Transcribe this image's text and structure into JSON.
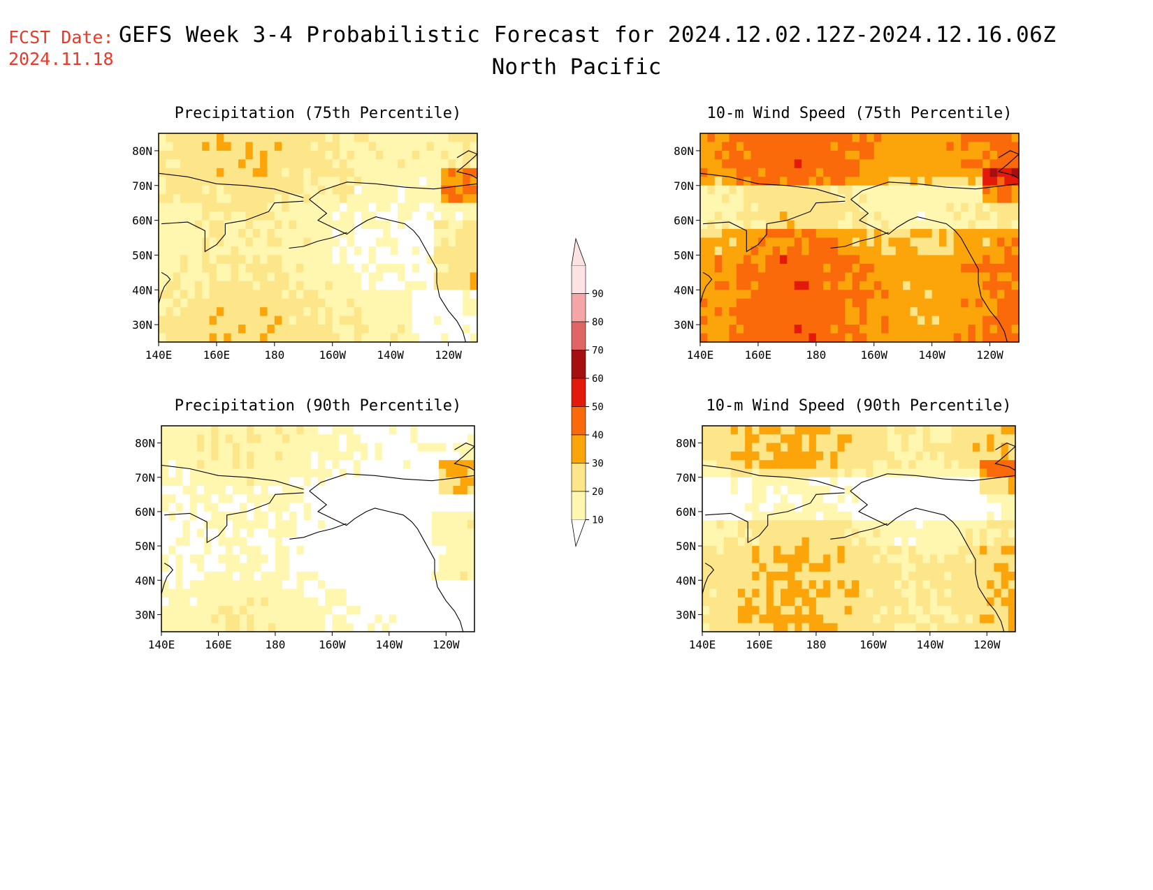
{
  "header": {
    "fcst_label": "FCST Date:",
    "fcst_date": "2024.11.18",
    "title": "GEFS Week 3-4 Probabilistic Forecast for 2024.12.02.12Z-2024.12.16.06Z",
    "region": "North Pacific"
  },
  "axes": {
    "lat_ticks": [
      "80N",
      "70N",
      "60N",
      "50N",
      "40N",
      "30N"
    ],
    "lon_ticks": [
      "140E",
      "160E",
      "180",
      "160W",
      "140W",
      "120W"
    ]
  },
  "panels": [
    {
      "id": "precip75",
      "title": "Precipitation (75th Percentile)",
      "field": "precip",
      "percentile": 75
    },
    {
      "id": "wind75",
      "title": "10-m Wind Speed (75th Percentile)",
      "field": "wind",
      "percentile": 75
    },
    {
      "id": "precip90",
      "title": "Precipitation (90th Percentile)",
      "field": "precip",
      "percentile": 90
    },
    {
      "id": "wind90",
      "title": "10-m Wind Speed (90th Percentile)",
      "field": "wind",
      "percentile": 90
    }
  ],
  "colorbar": {
    "labels": [
      "90",
      "80",
      "70",
      "60",
      "50",
      "40",
      "30",
      "20",
      "10"
    ],
    "levels": [
      {
        "min": 10,
        "max": 20,
        "color": "#fff7b0"
      },
      {
        "min": 20,
        "max": 30,
        "color": "#fde58a"
      },
      {
        "min": 30,
        "max": 40,
        "color": "#fca50a"
      },
      {
        "min": 40,
        "max": 50,
        "color": "#fa6a0a"
      },
      {
        "min": 50,
        "max": 60,
        "color": "#e31a0a"
      },
      {
        "min": 60,
        "max": 70,
        "color": "#a50f0f"
      },
      {
        "min": 70,
        "max": 80,
        "color": "#e06666"
      },
      {
        "min": 80,
        "max": 90,
        "color": "#f4a6a6"
      },
      {
        "min": 90,
        "max": 100,
        "color": "#fde2e4"
      }
    ]
  }
}
